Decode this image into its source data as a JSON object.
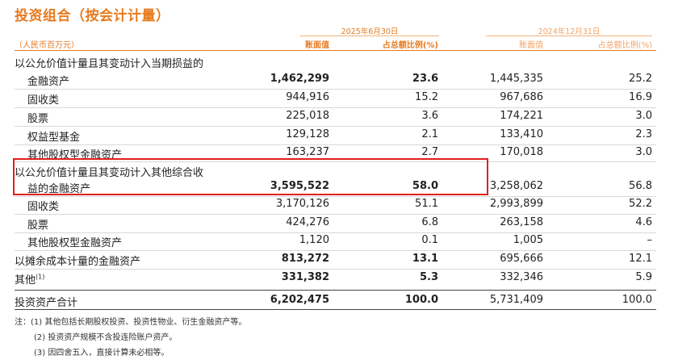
{
  "title": "投资组合（按会计计量）",
  "unit": "（人民币百万元）",
  "period_current": "2025年6月30日",
  "period_prior": "2024年12月31日",
  "headers": {
    "book_value": "账面值",
    "pct": "占总额比例(%)",
    "book_value_prior": "账面值",
    "pct_prior": "占总额比例(%)"
  },
  "rows": [
    {
      "label": "以公允价值计量且其变动计入当期损益的",
      "bv": "",
      "pct": "",
      "bv_prior": "",
      "pct_prior": ""
    },
    {
      "label": "金融资产",
      "bv": "1,462,299",
      "pct": "23.6",
      "bv_prior": "1,445,335",
      "pct_prior": "25.2"
    },
    {
      "label": "固收类",
      "bv": "944,916",
      "pct": "15.2",
      "bv_prior": "967,686",
      "pct_prior": "16.9"
    },
    {
      "label": "股票",
      "bv": "225,018",
      "pct": "3.6",
      "bv_prior": "174,221",
      "pct_prior": "3.0"
    },
    {
      "label": "权益型基金",
      "bv": "129,128",
      "pct": "2.1",
      "bv_prior": "133,410",
      "pct_prior": "2.3"
    },
    {
      "label": "其他股权型金融资产",
      "bv": "163,237",
      "pct": "2.7",
      "bv_prior": "170,018",
      "pct_prior": "3.0"
    },
    {
      "label": "以公允价值计量且其变动计入其他综合收",
      "bv": "",
      "pct": "",
      "bv_prior": "",
      "pct_prior": ""
    },
    {
      "label": "益的金融资产",
      "bv": "3,595,522",
      "pct": "58.0",
      "bv_prior": "3,258,062",
      "pct_prior": "56.8"
    },
    {
      "label": "固收类",
      "bv": "3,170,126",
      "pct": "51.1",
      "bv_prior": "2,993,899",
      "pct_prior": "52.2"
    },
    {
      "label": "股票",
      "bv": "424,276",
      "pct": "6.8",
      "bv_prior": "263,158",
      "pct_prior": "4.6"
    },
    {
      "label": "其他股权型金融资产",
      "bv": "1,120",
      "pct": "0.1",
      "bv_prior": "1,005",
      "pct_prior": "–"
    },
    {
      "label": "以摊余成本计量的金融资产",
      "bv": "813,272",
      "pct": "13.1",
      "bv_prior": "695,666",
      "pct_prior": "12.1"
    },
    {
      "label": "其他",
      "sup": "(1)",
      "bv": "331,382",
      "pct": "5.3",
      "bv_prior": "332,346",
      "pct_prior": "5.9"
    },
    {
      "label": "投资资产合计",
      "bv": "6,202,475",
      "pct": "100.0",
      "bv_prior": "5,731,409",
      "pct_prior": "100.0"
    }
  ],
  "notes": [
    "注：(1)  其他包括长期股权投资、投资性物业、衍生金融资产等。",
    "(2)  投资资产规模不含投连险账户资产。",
    "(3)  因四舍五入，直接计算未必相等。"
  ]
}
